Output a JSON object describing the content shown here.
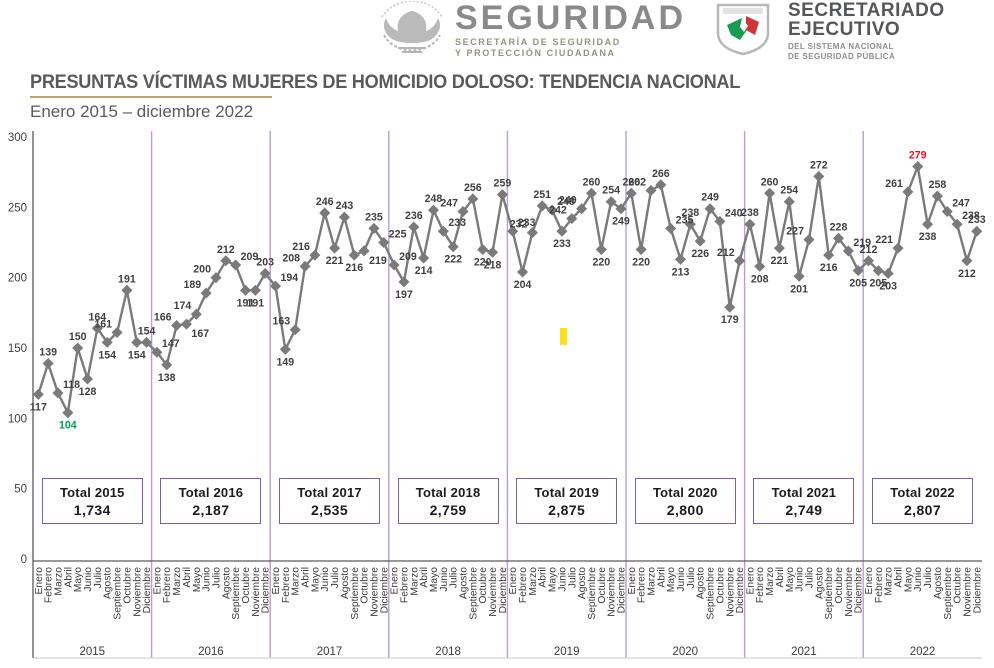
{
  "header": {
    "brand_left": {
      "title": "SEGURIDAD",
      "subtitle_line1": "SECRETARÍA DE SEGURIDAD",
      "subtitle_line2": "Y PROTECCIÓN CIUDADANA",
      "eagle_icon": "mexican-eagle-emblem"
    },
    "brand_right": {
      "title_line1": "SECRETARIADO",
      "title_line2": "EJECUTIVO",
      "subtitle_line1": "DEL SISTEMA NACIONAL",
      "subtitle_line2": "DE SEGURIDAD PÚBLICA",
      "shield_icon": "snsp-shield-emblem"
    }
  },
  "title": "PRESUNTAS VÍCTIMAS MUJERES DE HOMICIDIO DOLOSO: TENDENCIA NACIONAL",
  "subtitle": "Enero 2015 – diciembre 2022",
  "chart_data": {
    "type": "line",
    "title": "PRESUNTAS VÍCTIMAS MUJERES DE HOMICIDIO DOLOSO: TENDENCIA NACIONAL",
    "subtitle": "Enero 2015 – diciembre 2022",
    "months": [
      "Enero",
      "Febrero",
      "Marzo",
      "Abril",
      "Mayo",
      "Junio",
      "Julio",
      "Agosto",
      "Septiembre",
      "Octubre",
      "Noviembre",
      "Diciembre"
    ],
    "years": [
      "2015",
      "2016",
      "2017",
      "2018",
      "2019",
      "2020",
      "2021",
      "2022"
    ],
    "ylim": [
      0,
      300
    ],
    "yticks": [
      300,
      250,
      200,
      150,
      100,
      50,
      0
    ],
    "grid": "off",
    "legend": "none",
    "series": [
      {
        "year": "2015",
        "values": [
          117,
          139,
          118,
          104,
          150,
          128,
          164,
          154,
          161,
          191,
          154,
          154
        ],
        "total_label": "Total 2015",
        "total_value": "1,734"
      },
      {
        "year": "2016",
        "values": [
          147,
          138,
          166,
          167,
          174,
          189,
          200,
          212,
          209,
          191,
          191,
          203
        ],
        "total_label": "Total 2016",
        "total_value": "2,187"
      },
      {
        "year": "2017",
        "values": [
          194,
          149,
          163,
          208,
          216,
          246,
          221,
          243,
          216,
          219,
          235,
          225
        ],
        "total_label": "Total 2017",
        "total_value": "2,535"
      },
      {
        "year": "2018",
        "values": [
          209,
          197,
          236,
          214,
          248,
          233,
          222,
          247,
          256,
          220,
          218,
          259
        ],
        "total_label": "Total 2018",
        "total_value": "2,759"
      },
      {
        "year": "2019",
        "values": [
          233,
          204,
          232,
          251,
          248,
          233,
          242,
          249,
          260,
          220,
          254,
          249
        ],
        "total_label": "Total 2019",
        "total_value": "2,875"
      },
      {
        "year": "2020",
        "values": [
          260,
          220,
          262,
          266,
          235,
          213,
          238,
          226,
          249,
          240,
          179,
          212
        ],
        "total_label": "Total 2020",
        "total_value": "2,800"
      },
      {
        "year": "2021",
        "values": [
          238,
          208,
          260,
          221,
          254,
          201,
          227,
          272,
          216,
          228,
          219,
          205
        ],
        "total_label": "Total 2021",
        "total_value": "2,749"
      },
      {
        "year": "2022",
        "values": [
          212,
          205,
          203,
          221,
          261,
          279,
          238,
          258,
          247,
          238,
          212,
          233
        ],
        "total_label": "Total 2022",
        "total_value": "2,807"
      }
    ],
    "min_point": {
      "year": "2015",
      "month": "Abril",
      "value": 104,
      "label_color": "#00a14b"
    },
    "max_point": {
      "year": "2022",
      "month": "Junio",
      "value": 279,
      "label_color": "#e8112d"
    },
    "colors": {
      "line": "#7a7a7a",
      "point_label": "#3f3f3f",
      "axis": "#5a5a5a",
      "year_separator": "#b79fd1",
      "total_box_border": "#7d5fa0",
      "title_underline": "#c2a173",
      "highlight_mark": "#ffe01f"
    }
  }
}
